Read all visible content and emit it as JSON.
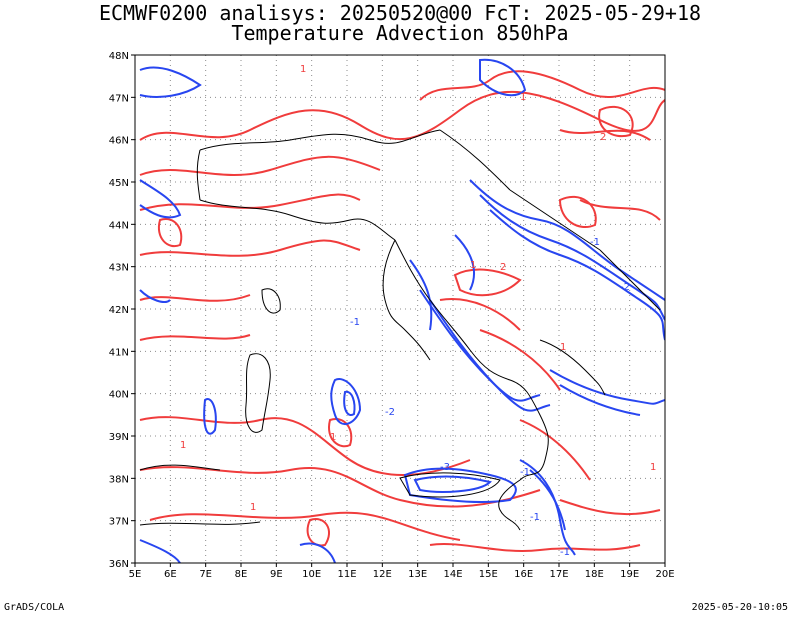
{
  "header": {
    "line1": "ECMWF0200 analisys: 20250520@00 FcT: 2025-05-29+18",
    "line2": "Temperature Advection 850hPa"
  },
  "footer": {
    "left": "GrADS/COLA",
    "right": "2025-05-20-10:05"
  },
  "map": {
    "lon_labels": [
      "5E",
      "6E",
      "7E",
      "8E",
      "9E",
      "10E",
      "11E",
      "12E",
      "13E",
      "14E",
      "15E",
      "16E",
      "17E",
      "18E",
      "19E",
      "20E"
    ],
    "lat_labels": [
      "48N",
      "47N",
      "46N",
      "45N",
      "44N",
      "43N",
      "42N",
      "41N",
      "40N",
      "39N",
      "38N",
      "37N",
      "36N"
    ],
    "lon_range": [
      5,
      20
    ],
    "lat_range": [
      36,
      48
    ],
    "colors": {
      "warm_advection": "#f03c3c",
      "cold_advection": "#2846f0",
      "coastline": "#000000",
      "grid": "#8c8c8c"
    },
    "contour_labels": [
      "1",
      "2",
      "3",
      "-1",
      "-2",
      "-3"
    ]
  }
}
